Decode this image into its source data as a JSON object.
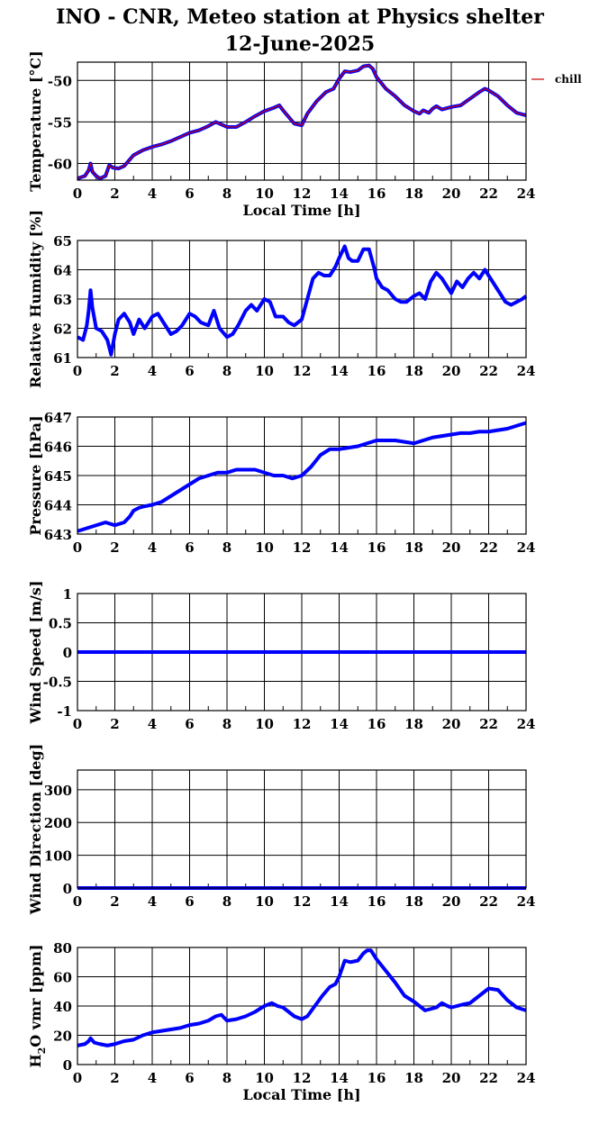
{
  "header": {
    "title_line1": "INO - CNR, Meteo station at Physics shelter",
    "title_line2": "12-June-2025"
  },
  "colors": {
    "data_line": "#0000ff",
    "chill_line": "#cc0000",
    "grid": "#000000"
  },
  "chart_data": [
    {
      "type": "line",
      "ylabel": "Temperature [°C]",
      "xlabel": "Local Time [h]",
      "xlim": [
        0,
        24
      ],
      "ylim": [
        -62,
        -47.8
      ],
      "xticks": [
        "0",
        "2",
        "4",
        "6",
        "8",
        "10",
        "12",
        "14",
        "16",
        "18",
        "20",
        "22",
        "24"
      ],
      "yticks": [
        {
          "v": -50,
          "t": "-50"
        },
        {
          "v": -55,
          "t": "-55"
        },
        {
          "v": -60,
          "t": "-60"
        }
      ],
      "grid": true,
      "legend": "top-right outside",
      "series": [
        {
          "name": "chill",
          "color": "#cc0000",
          "x": [
            0,
            0.4,
            0.6,
            0.7,
            0.8,
            1.0,
            1.2,
            1.5,
            1.7,
            1.9,
            2.2,
            2.5,
            3.0,
            3.5,
            4.0,
            4.5,
            5.0,
            5.5,
            6.0,
            6.5,
            7.0,
            7.4,
            7.7,
            8.0,
            8.5,
            9.0,
            9.5,
            10.0,
            10.5,
            10.8,
            11.0,
            11.3,
            11.6,
            12.0,
            12.3,
            12.8,
            13.3,
            13.7,
            14.0,
            14.3,
            14.6,
            15.0,
            15.3,
            15.6,
            15.8,
            16.0,
            16.5,
            17.0,
            17.5,
            18.0,
            18.3,
            18.5,
            18.8,
            19.0,
            19.2,
            19.5,
            20.0,
            20.5,
            21.0,
            21.5,
            21.8,
            22.0,
            22.5,
            23.0,
            23.5,
            24.0
          ],
          "values": [
            -61.8,
            -61.5,
            -60.8,
            -60.0,
            -61.0,
            -61.5,
            -61.8,
            -61.5,
            -60.2,
            -60.5,
            -60.6,
            -60.3,
            -59.0,
            -58.4,
            -58.0,
            -57.7,
            -57.3,
            -56.8,
            -56.3,
            -56.0,
            -55.5,
            -55.0,
            -55.3,
            -55.6,
            -55.6,
            -55.0,
            -54.3,
            -53.7,
            -53.3,
            -53.0,
            -53.6,
            -54.4,
            -55.2,
            -55.4,
            -54.0,
            -52.5,
            -51.4,
            -51.0,
            -49.8,
            -48.9,
            -49.0,
            -48.8,
            -48.3,
            -48.2,
            -48.6,
            -49.6,
            -51.0,
            -51.9,
            -53.0,
            -53.7,
            -54.0,
            -53.6,
            -53.9,
            -53.4,
            -53.1,
            -53.5,
            -53.2,
            -53.0,
            -52.2,
            -51.4,
            -51.0,
            -51.2,
            -51.9,
            -53.0,
            -53.9,
            -54.2
          ]
        }
      ]
    },
    {
      "type": "line",
      "ylabel": "Relative Humidity [%]",
      "xlim": [
        0,
        24
      ],
      "ylim": [
        61,
        65
      ],
      "xticks": [
        "0",
        "2",
        "4",
        "6",
        "8",
        "10",
        "12",
        "14",
        "16",
        "18",
        "20",
        "22",
        "24"
      ],
      "yticks": [
        {
          "v": 61,
          "t": "61"
        },
        {
          "v": 62,
          "t": "62"
        },
        {
          "v": 63,
          "t": "63"
        },
        {
          "v": 64,
          "t": "64"
        },
        {
          "v": 65,
          "t": "65"
        }
      ],
      "grid": true,
      "series": [
        {
          "color": "#0000ff",
          "x": [
            0,
            0.3,
            0.5,
            0.6,
            0.7,
            0.8,
            1.0,
            1.3,
            1.6,
            1.8,
            2.0,
            2.2,
            2.5,
            2.8,
            3.0,
            3.3,
            3.6,
            4.0,
            4.3,
            4.6,
            5.0,
            5.3,
            5.6,
            6.0,
            6.3,
            6.6,
            7.0,
            7.3,
            7.6,
            8.0,
            8.3,
            8.6,
            9.0,
            9.3,
            9.6,
            10.0,
            10.3,
            10.6,
            11.0,
            11.3,
            11.6,
            12.0,
            12.3,
            12.6,
            12.9,
            13.2,
            13.5,
            13.8,
            14.0,
            14.3,
            14.5,
            14.7,
            15.0,
            15.3,
            15.6,
            15.9,
            16.0,
            16.3,
            16.6,
            17.0,
            17.3,
            17.6,
            18.0,
            18.3,
            18.6,
            18.9,
            19.2,
            19.5,
            19.8,
            20.0,
            20.3,
            20.6,
            20.9,
            21.2,
            21.5,
            21.8,
            22.0,
            22.3,
            22.6,
            22.9,
            23.2,
            23.5,
            23.8,
            24.0
          ],
          "values": [
            61.7,
            61.6,
            62.1,
            62.6,
            63.3,
            62.7,
            62.0,
            61.9,
            61.6,
            61.1,
            61.8,
            62.3,
            62.5,
            62.2,
            61.8,
            62.3,
            62.0,
            62.4,
            62.5,
            62.2,
            61.8,
            61.9,
            62.1,
            62.5,
            62.4,
            62.2,
            62.1,
            62.6,
            62.0,
            61.7,
            61.8,
            62.1,
            62.6,
            62.8,
            62.6,
            63.0,
            62.9,
            62.4,
            62.4,
            62.2,
            62.1,
            62.3,
            63.0,
            63.7,
            63.9,
            63.8,
            63.8,
            64.1,
            64.4,
            64.8,
            64.4,
            64.3,
            64.3,
            64.7,
            64.7,
            64.0,
            63.7,
            63.4,
            63.3,
            63.0,
            62.9,
            62.9,
            63.1,
            63.2,
            63.0,
            63.6,
            63.9,
            63.7,
            63.4,
            63.2,
            63.6,
            63.4,
            63.7,
            63.9,
            63.7,
            64.0,
            63.8,
            63.5,
            63.2,
            62.9,
            62.8,
            62.9,
            63.0,
            63.1
          ]
        }
      ]
    },
    {
      "type": "line",
      "ylabel": "Pressure [hPa]",
      "xlim": [
        0,
        24
      ],
      "ylim": [
        643,
        647
      ],
      "xticks": [
        "0",
        "2",
        "4",
        "6",
        "8",
        "10",
        "12",
        "14",
        "16",
        "18",
        "20",
        "22",
        "24"
      ],
      "yticks": [
        {
          "v": 643,
          "t": "643"
        },
        {
          "v": 644,
          "t": "644"
        },
        {
          "v": 645,
          "t": "645"
        },
        {
          "v": 646,
          "t": "646"
        },
        {
          "v": 647,
          "t": "647"
        }
      ],
      "grid": true,
      "series": [
        {
          "color": "#0000ff",
          "x": [
            0,
            0.5,
            1.0,
            1.5,
            2.0,
            2.5,
            2.8,
            3.0,
            3.3,
            3.6,
            4.0,
            4.5,
            5.0,
            5.5,
            6.0,
            6.5,
            7.0,
            7.5,
            8.0,
            8.5,
            9.0,
            9.5,
            10.0,
            10.5,
            11.0,
            11.5,
            12.0,
            12.5,
            13.0,
            13.5,
            14.0,
            14.5,
            15.0,
            15.5,
            16.0,
            16.5,
            17.0,
            17.5,
            18.0,
            18.5,
            19.0,
            19.5,
            20.0,
            20.5,
            21.0,
            21.5,
            22.0,
            22.5,
            23.0,
            23.5,
            24.0
          ],
          "values": [
            643.1,
            643.2,
            643.3,
            643.4,
            643.3,
            643.4,
            643.6,
            643.8,
            643.9,
            643.95,
            644.0,
            644.1,
            644.3,
            644.5,
            644.7,
            644.9,
            645.0,
            645.1,
            645.1,
            645.2,
            645.2,
            645.2,
            645.1,
            645.0,
            645.0,
            644.9,
            645.0,
            645.3,
            645.7,
            645.9,
            645.9,
            645.95,
            646.0,
            646.1,
            646.2,
            646.2,
            646.2,
            646.15,
            646.1,
            646.2,
            646.3,
            646.35,
            646.4,
            646.45,
            646.45,
            646.5,
            646.5,
            646.55,
            646.6,
            646.7,
            646.8
          ]
        }
      ]
    },
    {
      "type": "line",
      "ylabel": "Wind Speed [m/s]",
      "xlim": [
        0,
        24
      ],
      "ylim": [
        -1,
        1
      ],
      "xticks": [
        "0",
        "2",
        "4",
        "6",
        "8",
        "10",
        "12",
        "14",
        "16",
        "18",
        "20",
        "22",
        "24"
      ],
      "yticks": [
        {
          "v": -1,
          "t": "-1"
        },
        {
          "v": -0.5,
          "t": "-0.5"
        },
        {
          "v": 0,
          "t": "0"
        },
        {
          "v": 0.5,
          "t": "0.5"
        },
        {
          "v": 1,
          "t": "1"
        }
      ],
      "grid": true,
      "series": [
        {
          "color": "#0000ff",
          "x": [
            0,
            24
          ],
          "values": [
            0,
            0
          ]
        }
      ]
    },
    {
      "type": "line",
      "ylabel": "Wind Direction [deg]",
      "xlim": [
        0,
        24
      ],
      "ylim": [
        0,
        360
      ],
      "xticks": [
        "0",
        "2",
        "4",
        "6",
        "8",
        "10",
        "12",
        "14",
        "16",
        "18",
        "20",
        "22",
        "24"
      ],
      "yticks": [
        {
          "v": 0,
          "t": "0"
        },
        {
          "v": 100,
          "t": "100"
        },
        {
          "v": 200,
          "t": "200"
        },
        {
          "v": 300,
          "t": "300"
        }
      ],
      "grid": true,
      "series": [
        {
          "color": "#0000ff",
          "x": [
            0,
            24
          ],
          "values": [
            0,
            0
          ]
        }
      ]
    },
    {
      "type": "line",
      "ylabel": "H2O vmr [ppm]",
      "xlabel": "Local Time [h]",
      "xlim": [
        0,
        24
      ],
      "ylim": [
        0,
        80
      ],
      "xticks": [
        "0",
        "2",
        "4",
        "6",
        "8",
        "10",
        "12",
        "14",
        "16",
        "18",
        "20",
        "22",
        "24"
      ],
      "yticks": [
        {
          "v": 0,
          "t": "0"
        },
        {
          "v": 20,
          "t": "20"
        },
        {
          "v": 40,
          "t": "40"
        },
        {
          "v": 60,
          "t": "60"
        },
        {
          "v": 80,
          "t": "80"
        }
      ],
      "grid": true,
      "series": [
        {
          "color": "#0000ff",
          "x": [
            0,
            0.4,
            0.6,
            0.7,
            0.9,
            1.2,
            1.6,
            2.0,
            2.5,
            3.0,
            3.5,
            4.0,
            4.5,
            5.0,
            5.5,
            6.0,
            6.5,
            7.0,
            7.4,
            7.7,
            8.0,
            8.5,
            9.0,
            9.5,
            10.0,
            10.4,
            10.7,
            11.0,
            11.3,
            11.6,
            12.0,
            12.3,
            12.7,
            13.1,
            13.5,
            13.8,
            14.0,
            14.3,
            14.6,
            15.0,
            15.3,
            15.5,
            15.7,
            16.0,
            16.5,
            17.0,
            17.5,
            18.0,
            18.3,
            18.6,
            18.9,
            19.2,
            19.5,
            19.8,
            20.0,
            20.3,
            20.6,
            21.0,
            21.5,
            21.8,
            22.0,
            22.5,
            23.0,
            23.5,
            24.0
          ],
          "values": [
            13,
            14,
            16,
            18,
            15,
            14,
            13,
            14,
            16,
            17,
            20,
            22,
            23,
            24,
            25,
            27,
            28,
            30,
            33,
            34,
            30,
            31,
            33,
            36,
            40,
            42,
            40,
            39,
            36,
            33,
            31,
            33,
            40,
            47,
            53,
            55,
            60,
            71,
            70,
            71,
            76,
            78,
            78,
            72,
            64,
            56,
            47,
            43,
            40,
            37,
            38,
            39,
            42,
            40,
            39,
            40,
            41,
            42,
            47,
            50,
            52,
            51,
            44,
            39,
            37
          ]
        }
      ]
    }
  ]
}
